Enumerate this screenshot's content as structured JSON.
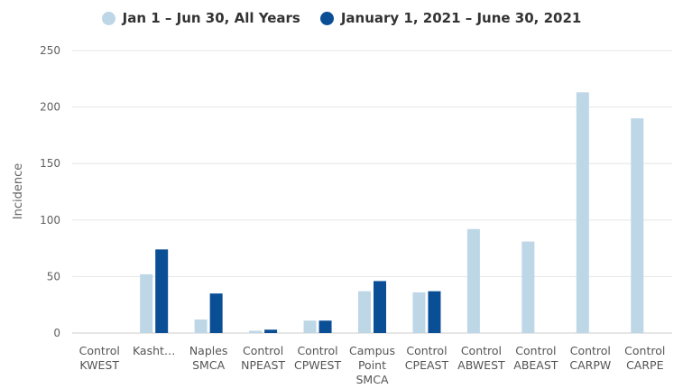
{
  "chart_data": {
    "type": "bar",
    "ylabel": "Incidence",
    "xlabel": "",
    "ylim": [
      0,
      250
    ],
    "yticks": [
      0,
      50,
      100,
      150,
      200,
      250
    ],
    "grid": "horizontal",
    "legend_position": "top-center",
    "categories": [
      [
        "Control",
        "KWEST"
      ],
      [
        "Kasht…"
      ],
      [
        "Naples",
        "SMCA"
      ],
      [
        "Control",
        "NPEAST"
      ],
      [
        "Control",
        "CPWEST"
      ],
      [
        "Campus",
        "Point",
        "SMCA"
      ],
      [
        "Control",
        "CPEAST"
      ],
      [
        "Control",
        "ABWEST"
      ],
      [
        "Control",
        "ABEAST"
      ],
      [
        "Control",
        "CARPW"
      ],
      [
        "Control",
        "CARPE"
      ]
    ],
    "series": [
      {
        "name": "Jan 1 – Jun 30, All Years",
        "color": "#bdd7e7",
        "values": [
          0,
          52,
          12,
          2,
          11,
          37,
          36,
          92,
          81,
          213,
          190
        ]
      },
      {
        "name": "January 1, 2021 – June 30, 2021",
        "color": "#0a4f96",
        "values": [
          0,
          74,
          35,
          3,
          11,
          46,
          37,
          null,
          null,
          null,
          null
        ]
      }
    ]
  },
  "colors": {
    "grid": "#e6e6e6",
    "axis": "#cccccc"
  }
}
